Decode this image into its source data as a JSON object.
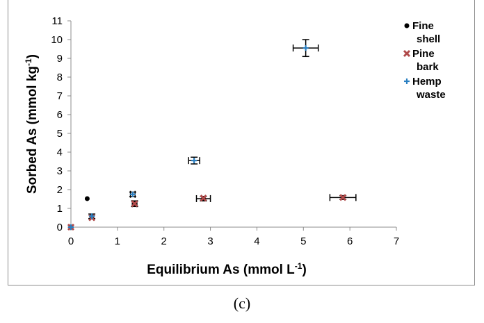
{
  "caption": "(c)",
  "chart_data": {
    "type": "scatter",
    "title": "",
    "xlabel": "Equilibrium As (mmol L",
    "xlabel_sup": "-1",
    "xlabel_close": ")",
    "ylabel": "Sorbed As (mmol kg",
    "ylabel_sup": "-1",
    "ylabel_close": ")",
    "xlim": [
      0,
      7
    ],
    "ylim": [
      0,
      11
    ],
    "xticks": [
      "0",
      "1",
      "2",
      "3",
      "4",
      "5",
      "6",
      "7"
    ],
    "yticks": [
      "0",
      "1",
      "2",
      "3",
      "4",
      "5",
      "6",
      "7",
      "8",
      "9",
      "10",
      "11"
    ],
    "grid": false,
    "legend_position": "right",
    "series": [
      {
        "name": "Fine shell",
        "legend_lines": [
          "Fine",
          "shell"
        ],
        "marker": "circle",
        "color": "#000000",
        "points": [
          {
            "x": 0.0,
            "y": 0.0
          },
          {
            "x": 0.35,
            "y": 1.52
          },
          {
            "x": 0.45,
            "y": 0.55
          },
          {
            "x": 1.37,
            "y": 1.25
          },
          {
            "x": 2.85,
            "y": 1.52
          },
          {
            "x": 5.85,
            "y": 1.58
          }
        ]
      },
      {
        "name": "Pine bark",
        "legend_lines": [
          "Pine",
          "bark"
        ],
        "marker": "x",
        "color": "#b04a4a",
        "points": [
          {
            "x": 0.0,
            "y": 0.0
          },
          {
            "x": 0.45,
            "y": 0.5
          },
          {
            "x": 1.37,
            "y": 1.25
          },
          {
            "x": 2.85,
            "y": 1.55
          },
          {
            "x": 5.85,
            "y": 1.58
          }
        ]
      },
      {
        "name": "Hemp waste",
        "legend_lines": [
          "Hemp",
          "waste"
        ],
        "marker": "plus",
        "color": "#2a7fc1",
        "points": [
          {
            "x": 0.0,
            "y": 0.0
          },
          {
            "x": 0.45,
            "y": 0.58,
            "yerr": 0.12
          },
          {
            "x": 1.33,
            "y": 1.75,
            "xerr": 0.05,
            "yerr": 0.12
          },
          {
            "x": 2.65,
            "y": 3.55,
            "xerr": 0.12,
            "yerr": 0.18
          },
          {
            "x": 5.05,
            "y": 9.55,
            "xerr": 0.27,
            "yerr": 0.45
          }
        ]
      }
    ],
    "error_bars": [
      {
        "x": 2.85,
        "y": 1.52,
        "xerr": 0.15,
        "yerr": 0.12
      },
      {
        "x": 5.85,
        "y": 1.58,
        "xerr": 0.28,
        "yerr": 0.1
      },
      {
        "x": 1.37,
        "y": 1.25,
        "xerr": 0.05,
        "yerr": 0.15
      }
    ]
  }
}
